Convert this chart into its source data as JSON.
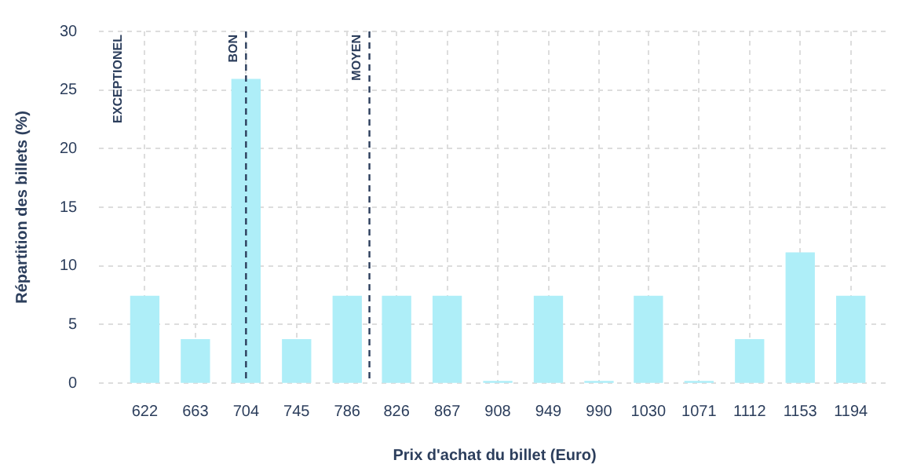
{
  "chart_data": {
    "type": "bar",
    "xlabel": "Prix d'achat du billet (Euro)",
    "ylabel": "Répartition des billets (%)",
    "x": [
      622,
      663,
      704,
      745,
      786,
      826,
      867,
      908,
      949,
      990,
      1030,
      1071,
      1112,
      1153,
      1194
    ],
    "values": [
      7.4,
      3.7,
      25.9,
      3.7,
      7.4,
      7.4,
      7.4,
      0,
      7.4,
      0,
      7.4,
      0,
      3.7,
      11.1,
      7.4
    ],
    "color": "#aeeef8",
    "xlim": [
      585,
      1226
    ],
    "xticks": [
      622,
      663,
      704,
      745,
      786,
      826,
      867,
      908,
      949,
      990,
      1030,
      1071,
      1112,
      1153,
      1194
    ],
    "ylim": [
      0,
      30
    ],
    "yticks": [
      0,
      5,
      10,
      15,
      20,
      25,
      30
    ],
    "grid": true,
    "legend": false,
    "ref_lines": [
      {
        "axis": "x",
        "value": 704,
        "label": "BON",
        "color": "#2c3e5c",
        "line_style": "dashed"
      },
      {
        "axis": "x",
        "value": 804,
        "label": "MOYEN",
        "color": "#2c3e5c",
        "line_style": "dashed"
      }
    ],
    "annotations": [
      "EXCEPTIONEL"
    ]
  }
}
